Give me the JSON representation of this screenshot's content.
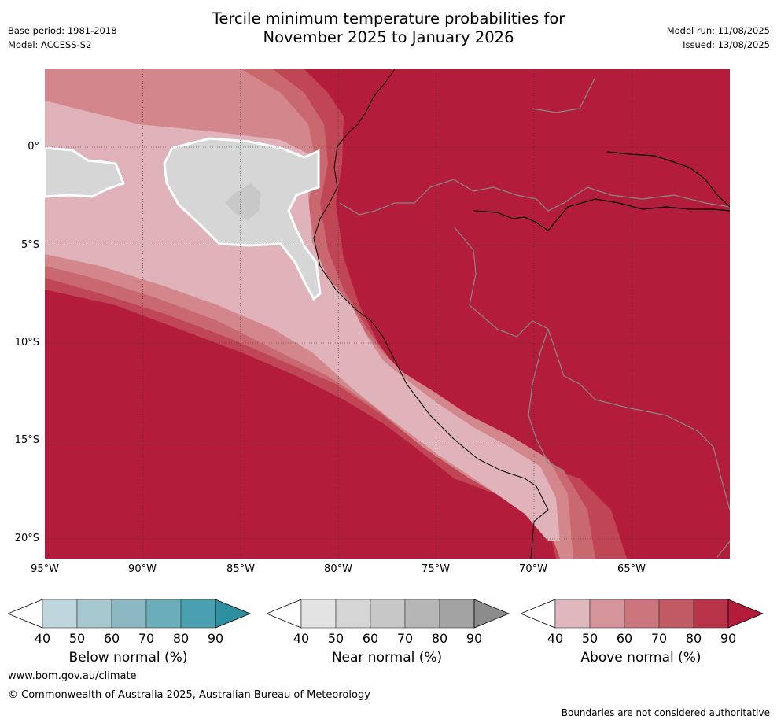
{
  "header": {
    "base_period": "Base period: 1981-2018",
    "model": "Model: ACCESS-S2",
    "title_line1": "Tercile minimum temperature probabilities for",
    "title_line2": "November 2025 to January 2026",
    "model_run": "Model run: 11/08/2025",
    "issued": "Issued: 13/08/2025"
  },
  "map": {
    "latitude_labels": [
      "0°",
      "5°S",
      "10°S",
      "15°S",
      "20°S"
    ],
    "longitude_labels": [
      "95°W",
      "90°W",
      "85°W",
      "80°W",
      "75°W",
      "70°W",
      "65°W"
    ],
    "colors": {
      "above_90": "#b31c3a",
      "above_80": "#c04655",
      "above_70": "#c9686f",
      "above_60": "#d3878d",
      "above_50": "#dfb3b9",
      "near_60": "#d6d6d6",
      "near_70": "#c8c8c8",
      "near_50": "#e8e8e8"
    }
  },
  "legends": [
    {
      "name": "below",
      "title": "Below normal (%)",
      "ticks": [
        "40",
        "50",
        "60",
        "70",
        "80",
        "90"
      ],
      "colors": [
        "#ffffff",
        "#bfd6dc",
        "#a6c8cf",
        "#8bb8c3",
        "#6badb9",
        "#4aa0b0",
        "#2e8fa3"
      ]
    },
    {
      "name": "near",
      "title": "Near normal (%)",
      "ticks": [
        "40",
        "50",
        "60",
        "70",
        "80",
        "90"
      ],
      "colors": [
        "#ffffff",
        "#e3e3e3",
        "#d5d5d5",
        "#c7c7c7",
        "#b6b6b6",
        "#a3a3a3",
        "#8c8c8c"
      ]
    },
    {
      "name": "above",
      "title": "Above normal (%)",
      "ticks": [
        "40",
        "50",
        "60",
        "70",
        "80",
        "90"
      ],
      "colors": [
        "#ffffff",
        "#dfb7bc",
        "#d4949a",
        "#cb767c",
        "#c25a63",
        "#b93349",
        "#b31c3a"
      ]
    }
  ],
  "footer": {
    "website": "www.bom.gov.au/climate",
    "copyright": "© Commonwealth of Australia 2025, Australian Bureau of Meteorology",
    "disclaimer": "Boundaries are not considered authoritative"
  }
}
